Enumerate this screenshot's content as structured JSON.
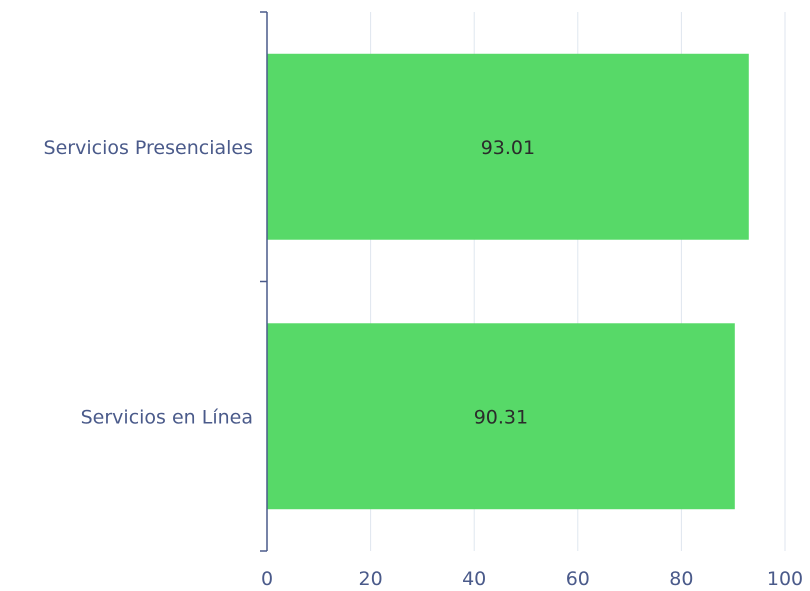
{
  "chart_data": {
    "type": "bar",
    "orientation": "horizontal",
    "categories": [
      "Servicios Presenciales",
      "Servicios en Línea"
    ],
    "values": [
      93.01,
      90.31
    ],
    "value_labels": [
      "93.01",
      "90.31"
    ],
    "xlim": [
      0,
      100
    ],
    "xticks": [
      0,
      20,
      40,
      60,
      80,
      100
    ],
    "xtick_labels": [
      "0",
      "20",
      "40",
      "60",
      "80",
      "100"
    ],
    "grid": true,
    "legend": "none",
    "title": "",
    "xlabel": "",
    "ylabel": ""
  },
  "colors": {
    "bar": "#57d968",
    "grid": "#dfe6ef",
    "axis": "#4a5a8a",
    "tick_text": "#4a5a8a",
    "value_text": "#2b2b2b"
  }
}
